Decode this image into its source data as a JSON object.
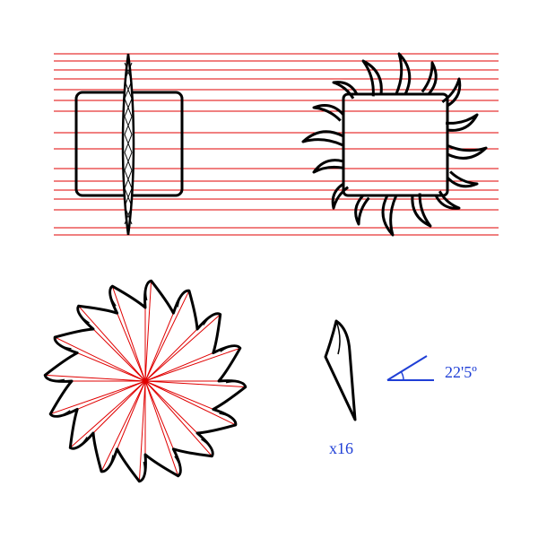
{
  "colors": {
    "background": "#ffffff",
    "outline": "#000000",
    "construction": "#e00000",
    "annotation": "#1f3fd6"
  },
  "annotations": {
    "angle_label": "22'5º",
    "count_label": "x16"
  },
  "figures": {
    "saw_blade": {
      "teeth": 16,
      "angle_step_degrees": 22.5
    }
  }
}
